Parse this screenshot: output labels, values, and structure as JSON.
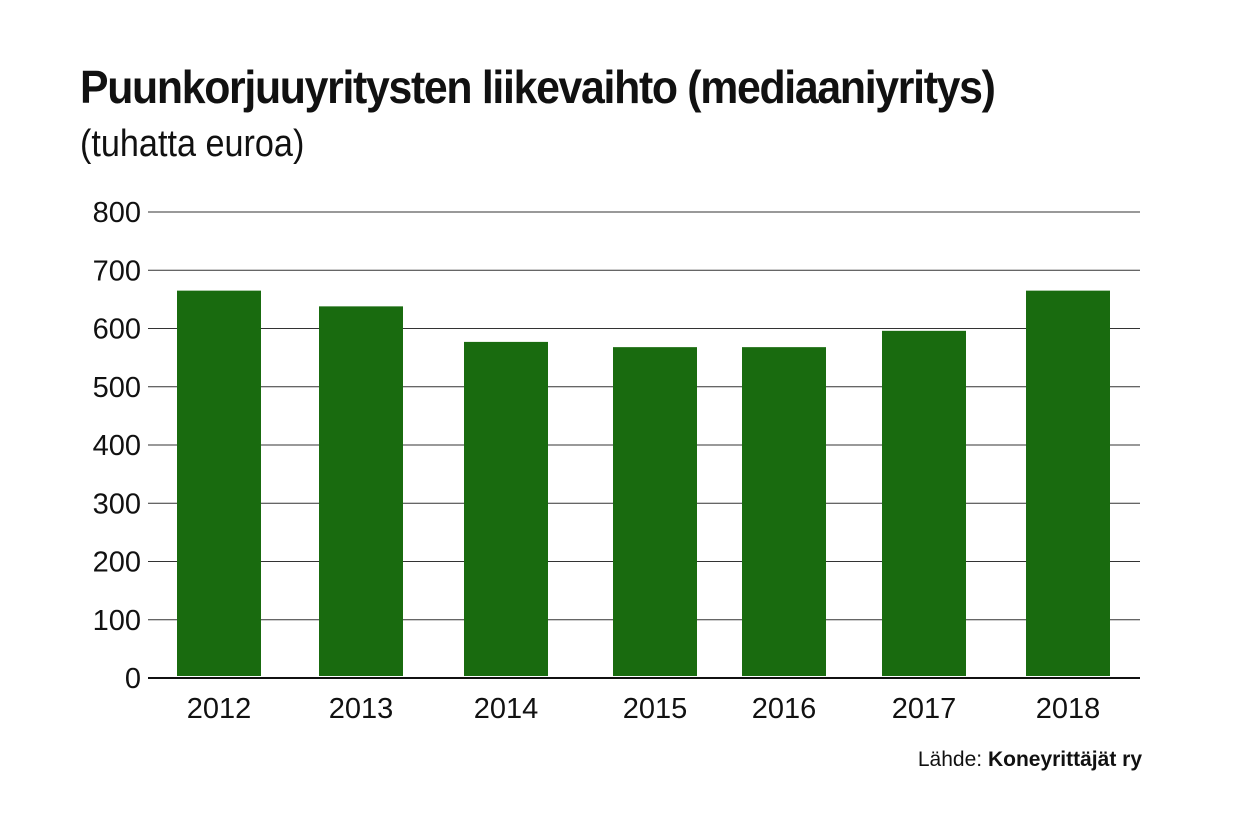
{
  "chart_data": {
    "type": "bar",
    "title": "Puunkorjuuyritysten liikevaihto (mediaaniyritys)",
    "subtitle": "(tuhatta euroa)",
    "categories": [
      "2012",
      "2013",
      "2014",
      "2015",
      "2016",
      "2017",
      "2018"
    ],
    "values": [
      665,
      638,
      577,
      568,
      568,
      596,
      665
    ],
    "xlabel": "",
    "ylabel": "",
    "ylim": [
      0,
      800
    ],
    "yticks": [
      "0",
      "100",
      "200",
      "300",
      "400",
      "500",
      "600",
      "700",
      "800"
    ],
    "grid": true,
    "legend": "none",
    "bar_color": "#196b0f"
  },
  "source": {
    "label": "Lähde:",
    "name": "Koneyrittäjät ry"
  }
}
